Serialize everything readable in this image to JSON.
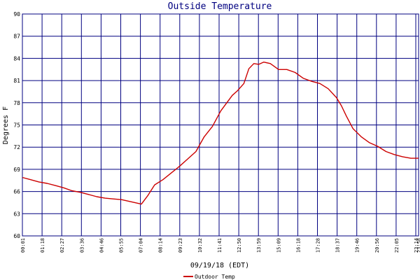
{
  "chart_data": {
    "type": "line",
    "title": "Outside Temperature",
    "xlabel": "09/19/18 (EDT)",
    "ylabel": "Degrees F",
    "ylim": [
      60,
      90
    ],
    "yticks": [
      "60",
      "63",
      "66",
      "69",
      "72",
      "75",
      "78",
      "81",
      "84",
      "87",
      "90"
    ],
    "xticks": [
      "00:01",
      "01:18",
      "02:27",
      "03:36",
      "04:46",
      "05:55",
      "07:04",
      "08:14",
      "09:23",
      "10:32",
      "11:41",
      "12:50",
      "13:59",
      "15:09",
      "16:18",
      "17:28",
      "18:37",
      "19:46",
      "20:56",
      "22:05",
      "23:14",
      "23:58"
    ],
    "grid": true,
    "legend_placement": "bottom-left",
    "colors": {
      "axes": "#000080",
      "grid": "#000080",
      "line": "#cc0000"
    },
    "series": [
      {
        "name": "Outdoor Temp",
        "x": [
          0.0,
          0.5,
          1.0,
          1.5,
          2.0,
          2.5,
          3.0,
          3.5,
          4.0,
          4.5,
          5.0,
          5.5,
          6.0,
          6.4,
          6.8,
          7.2,
          7.6,
          8.0,
          8.5,
          9.0,
          9.5,
          10.0,
          10.5,
          11.0,
          11.5,
          12.0,
          12.3,
          12.7,
          13.0,
          13.4,
          13.7,
          14.0,
          14.3,
          14.6,
          15.0,
          15.5,
          16.0,
          16.5,
          17.0,
          17.5,
          18.0,
          18.5,
          19.0,
          19.3,
          19.6,
          20.0,
          20.5,
          21.0,
          21.5,
          22.0,
          22.5,
          23.0,
          23.5,
          23.97
        ],
        "y": [
          67.9,
          67.6,
          67.3,
          67.1,
          66.8,
          66.5,
          66.1,
          65.9,
          65.6,
          65.3,
          65.1,
          65.0,
          64.9,
          64.7,
          64.5,
          64.3,
          65.5,
          66.9,
          67.6,
          68.5,
          69.4,
          70.4,
          71.4,
          73.4,
          74.8,
          76.9,
          77.8,
          79.0,
          79.6,
          80.6,
          82.6,
          83.3,
          83.2,
          83.5,
          83.3,
          82.5,
          82.5,
          82.1,
          81.3,
          80.9,
          80.6,
          79.9,
          78.7,
          77.6,
          76.2,
          74.5,
          73.4,
          72.6,
          72.1,
          71.4,
          71.0,
          70.7,
          70.5,
          70.5
        ]
      }
    ]
  }
}
